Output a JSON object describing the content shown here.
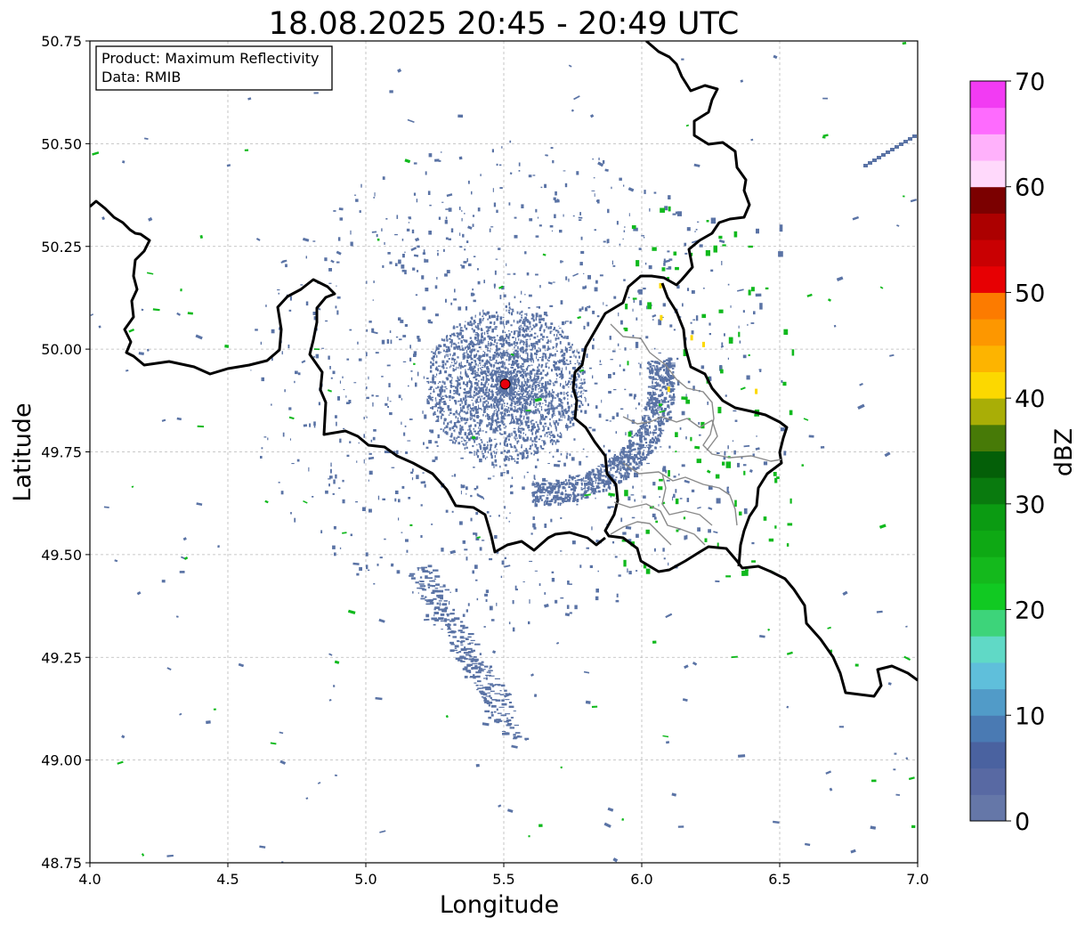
{
  "title": "18.08.2025 20:45 - 20:49 UTC",
  "x_axis": {
    "label": "Longitude",
    "range": [
      4.0,
      7.0
    ],
    "ticks": [
      4.0,
      4.5,
      5.0,
      5.5,
      6.0,
      6.5,
      7.0
    ],
    "tick_labels": [
      "4.0",
      "4.5",
      "5.0",
      "5.5",
      "6.0",
      "6.5",
      "7.0"
    ]
  },
  "y_axis": {
    "label": "Latitude",
    "range": [
      48.75,
      50.75
    ],
    "ticks": [
      48.75,
      49.0,
      49.25,
      49.5,
      49.75,
      50.0,
      50.25,
      50.5,
      50.75
    ],
    "tick_labels": [
      "48.75",
      "49.00",
      "49.25",
      "49.50",
      "49.75",
      "50.00",
      "50.25",
      "50.50",
      "50.75"
    ]
  },
  "grid": true,
  "info_box": {
    "line1": "Product: Maximum Reflectivity",
    "line2": "Data: RMIB"
  },
  "radar_site": {
    "lon": 5.505,
    "lat": 49.915,
    "color": "#e8000b"
  },
  "colorbar": {
    "label": "dBZ",
    "min": 0,
    "max": 70,
    "ticks": [
      0,
      10,
      20,
      30,
      40,
      50,
      60,
      70
    ],
    "tick_labels": [
      "0",
      "10",
      "20",
      "30",
      "40",
      "50",
      "60",
      "70"
    ],
    "colors": [
      "#6577a8",
      "#5869a3",
      "#4a62a0",
      "#4a7ab3",
      "#519bc8",
      "#5fbfdb",
      "#60d9c6",
      "#3dd47a",
      "#11c922",
      "#14b91c",
      "#0ea914",
      "#0b9b12",
      "#097a0e",
      "#045f08",
      "#477a07",
      "#a9ae06",
      "#fcd800",
      "#fdb400",
      "#fd9700",
      "#fc7b00",
      "#e70003",
      "#c90002",
      "#ac0000",
      "#7b0000",
      "#ffd9fb",
      "#ffb1fb",
      "#fe6bfe",
      "#f23bf3"
    ]
  },
  "map_layers": {
    "border_color": "#000000",
    "province_border_color": "#8a8a8a",
    "echo_colors": {
      "weak": "#5a73a5",
      "moderate": "#10b91d",
      "strong": "#fcd800"
    }
  }
}
